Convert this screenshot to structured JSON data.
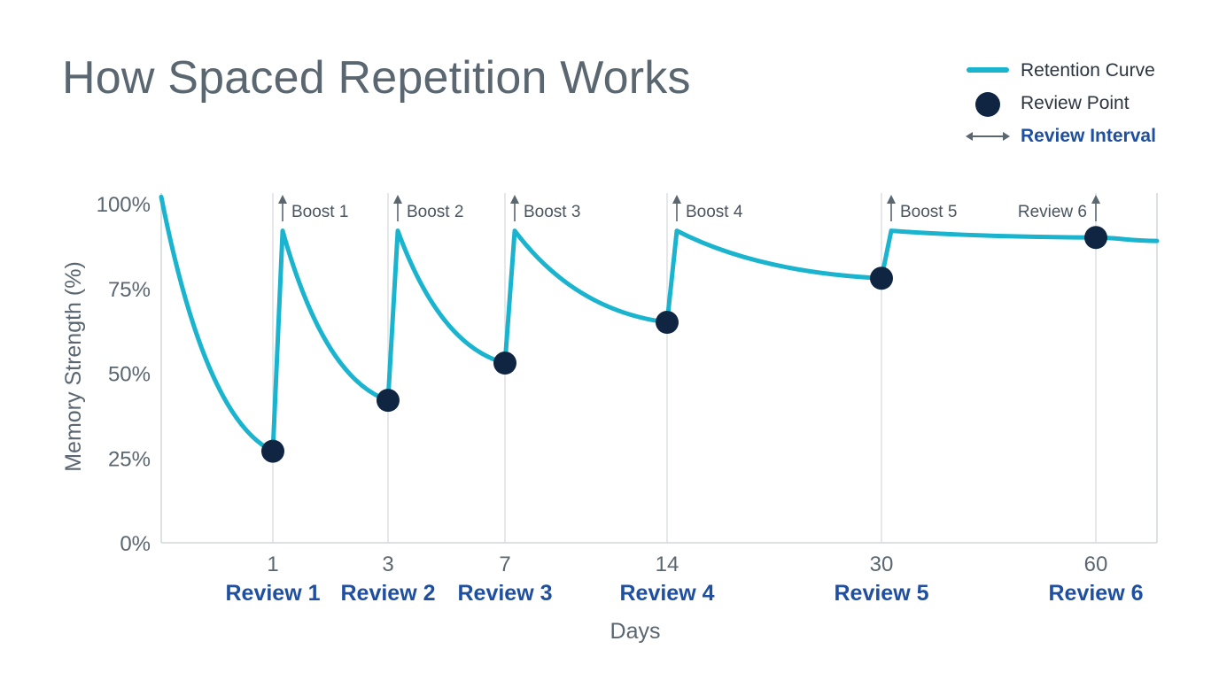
{
  "title": "How Spaced Repetition Works",
  "legend": {
    "retention_curve": "Retention Curve",
    "review_point": "Review Point",
    "review_interval": "Review Interval"
  },
  "colors": {
    "curve": "#1ab4cf",
    "point": "#0f2542",
    "review_text": "#1f4fa0",
    "gray_text": "#5a6670",
    "grid": "#d4d7da"
  },
  "chart_data": {
    "type": "line",
    "title": "How Spaced Repetition Works",
    "xlabel": "Days",
    "ylabel": "Memory Strength (%)",
    "ylim": [
      0,
      100
    ],
    "y_ticks": [
      {
        "value": 0,
        "label": "0%"
      },
      {
        "value": 25,
        "label": "25%"
      },
      {
        "value": 50,
        "label": "50%"
      },
      {
        "value": 75,
        "label": "75%"
      },
      {
        "value": 100,
        "label": "100%"
      }
    ],
    "reviews": [
      {
        "day": "1",
        "name": "Review 1",
        "retention": 27,
        "boost_to": 92,
        "boost_label": "Boost 1"
      },
      {
        "day": "3",
        "name": "Review 2",
        "retention": 42,
        "boost_to": 92,
        "boost_label": "Boost 2"
      },
      {
        "day": "7",
        "name": "Review 3",
        "retention": 53,
        "boost_to": 92,
        "boost_label": "Boost 3"
      },
      {
        "day": "14",
        "name": "Review 4",
        "retention": 65,
        "boost_to": 92,
        "boost_label": "Boost 4"
      },
      {
        "day": "30",
        "name": "Review 5",
        "retention": 78,
        "boost_to": 92,
        "boost_label": "Boost 5"
      },
      {
        "day": "60",
        "name": "Review 6",
        "retention": 90,
        "boost_to": null,
        "boost_label": "Review 6"
      }
    ],
    "start_retention": 102,
    "end_retention": 89
  }
}
